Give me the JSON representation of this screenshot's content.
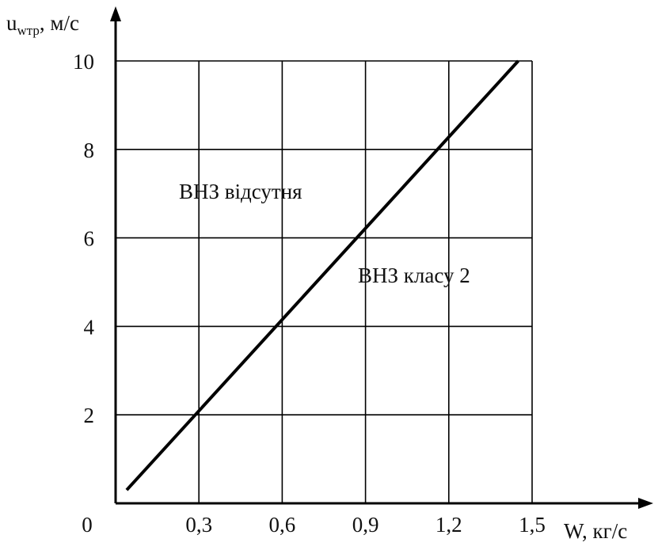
{
  "chart_data": {
    "type": "line",
    "xlabel": "W, кг/с",
    "ylabel_main": "u",
    "ylabel_sub": "wтр",
    "ylabel_unit": ", м/с",
    "origin_label": "0",
    "xlim": [
      0,
      1.5
    ],
    "ylim": [
      0,
      10
    ],
    "x_ticks": [
      {
        "value": 0.3,
        "label": "0,3"
      },
      {
        "value": 0.6,
        "label": "0,6"
      },
      {
        "value": 0.9,
        "label": "0,9"
      },
      {
        "value": 1.2,
        "label": "1,2"
      },
      {
        "value": 1.5,
        "label": "1,5"
      }
    ],
    "y_ticks": [
      {
        "value": 2,
        "label": "2"
      },
      {
        "value": 4,
        "label": "4"
      },
      {
        "value": 6,
        "label": "6"
      },
      {
        "value": 8,
        "label": "8"
      },
      {
        "value": 10,
        "label": "10"
      }
    ],
    "grid": true,
    "series": [
      {
        "x": [
          0.04,
          1.45
        ],
        "y": [
          0.3,
          10.0
        ]
      }
    ],
    "annotations": [
      {
        "text": "ВНЗ відсутня",
        "x": 0.55,
        "y": 7.0
      },
      {
        "text": "ВНЗ класу 2",
        "x": 1.05,
        "y": 5.0
      }
    ]
  }
}
